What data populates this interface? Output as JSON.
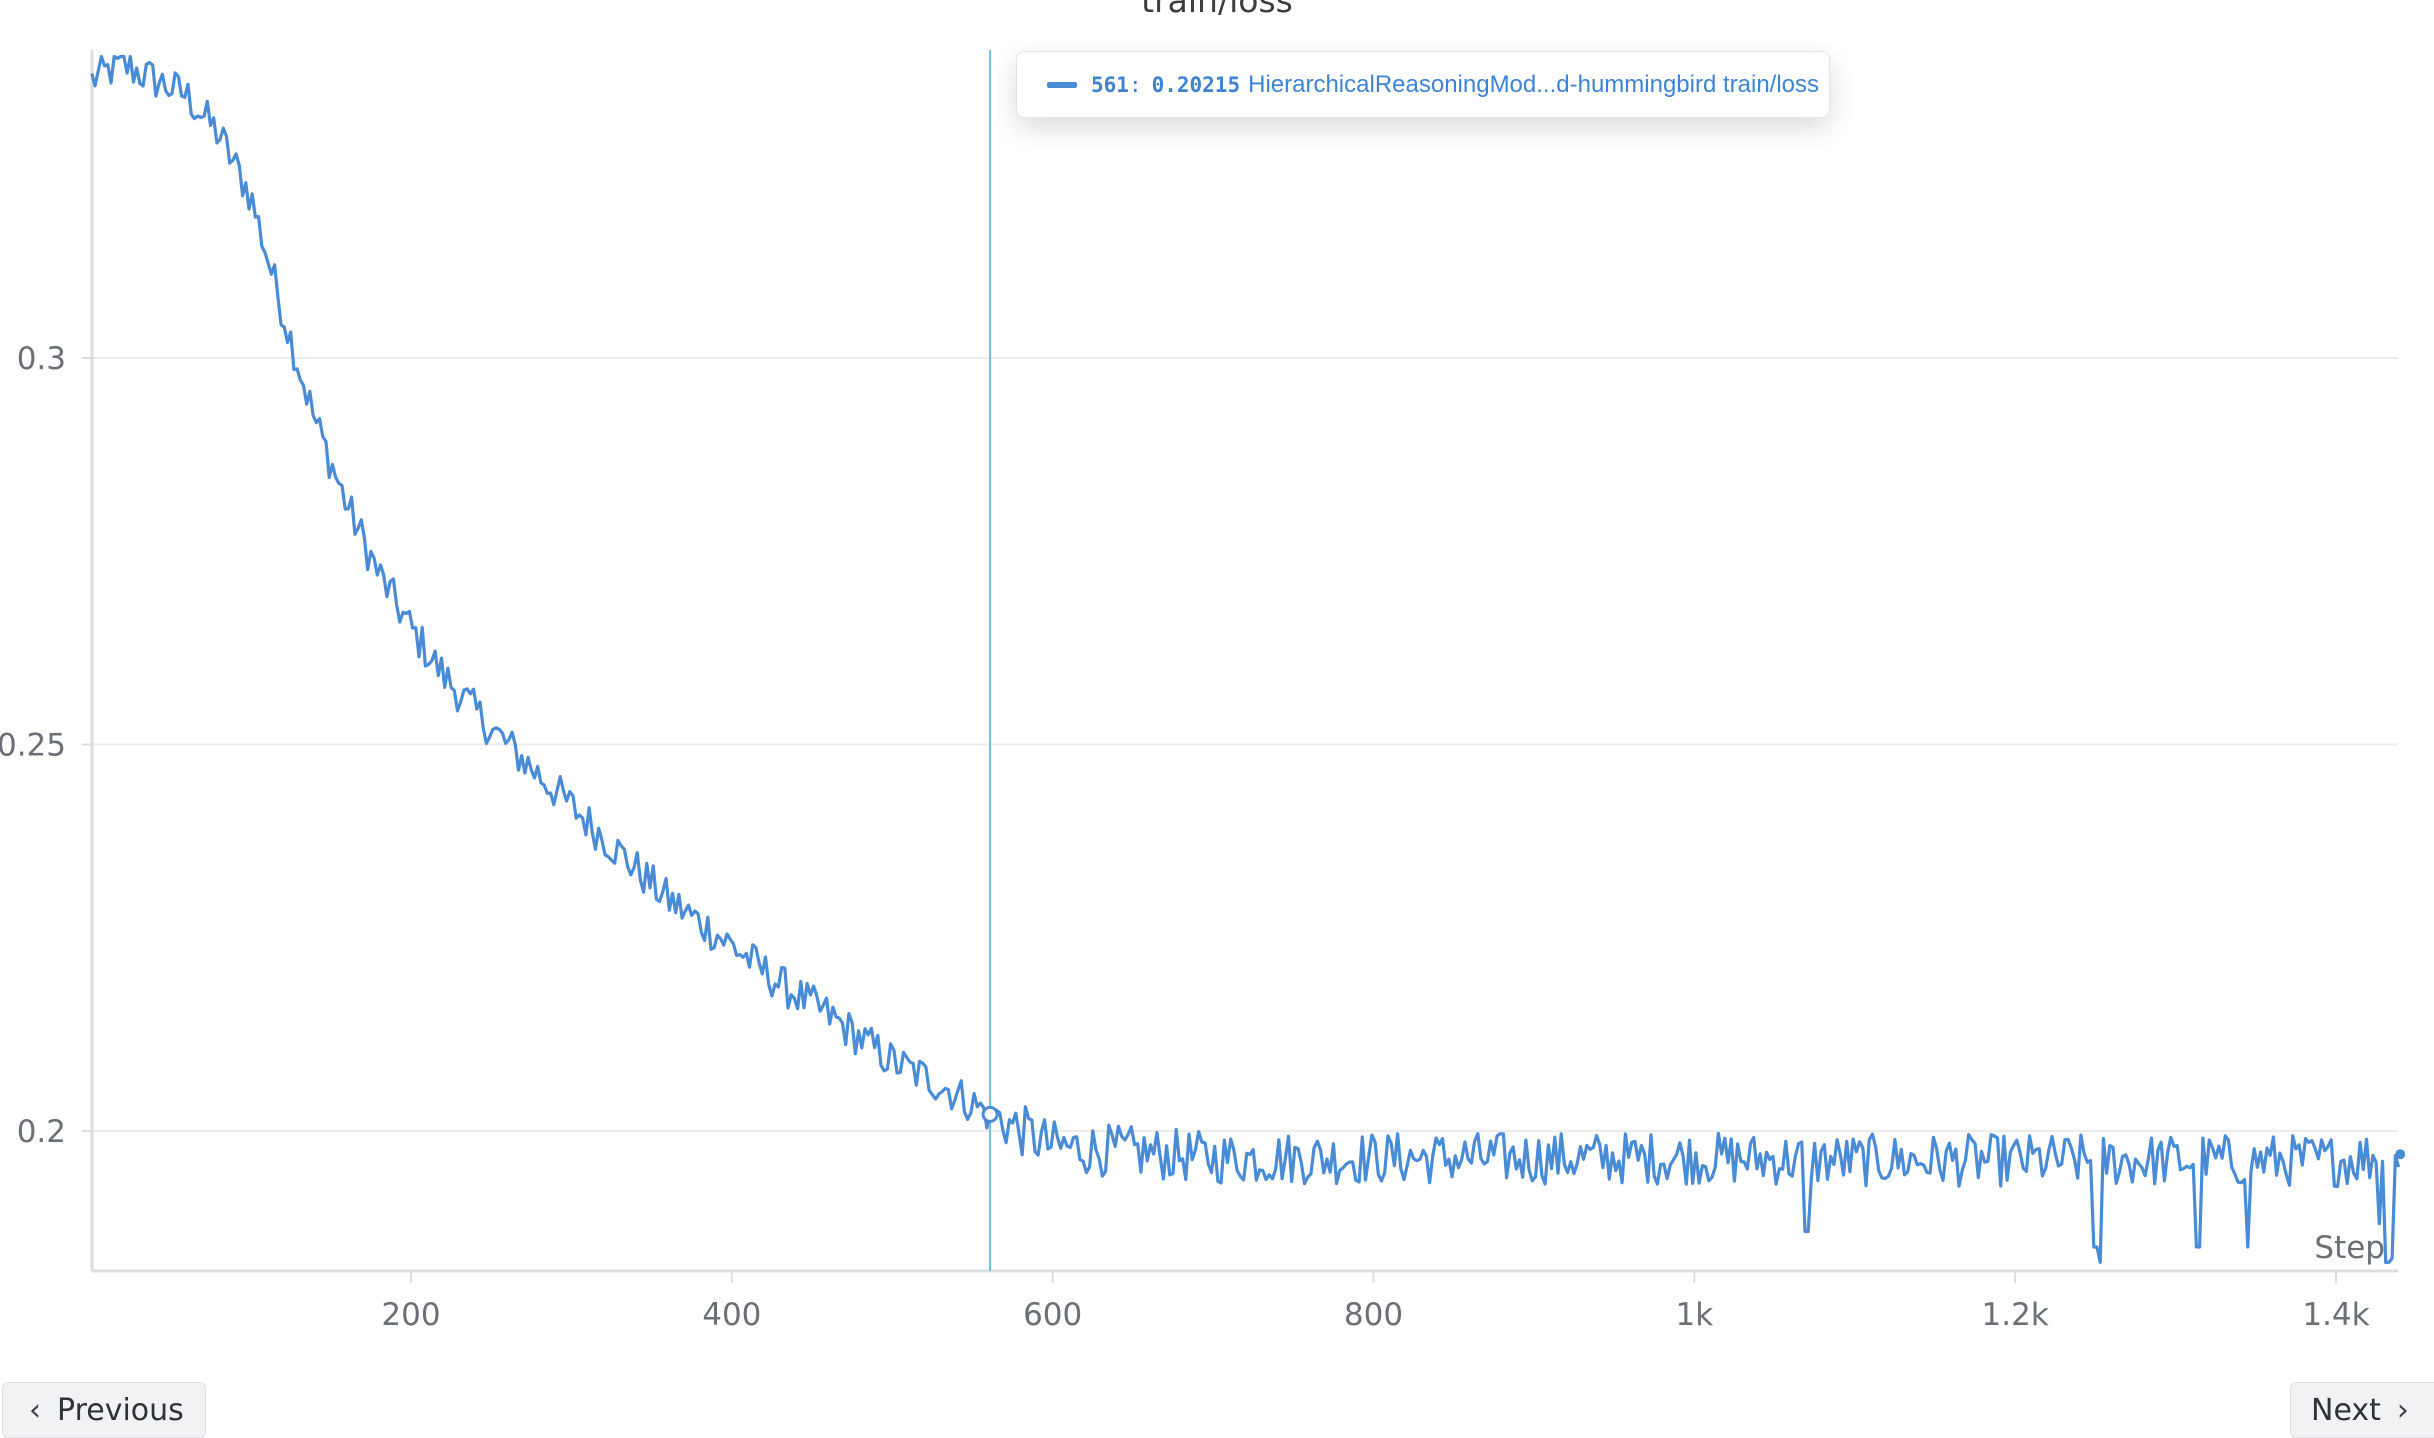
{
  "chart_data": {
    "type": "line",
    "title": "train/loss",
    "xlabel": "Step",
    "ylabel": "",
    "xlim": [
      1,
      1440
    ],
    "ylim": [
      0.182,
      0.339
    ],
    "x_ticks": [
      {
        "value": 200,
        "label": "200"
      },
      {
        "value": 400,
        "label": "400"
      },
      {
        "value": 600,
        "label": "600"
      },
      {
        "value": 800,
        "label": "800"
      },
      {
        "value": 1000,
        "label": "1k"
      },
      {
        "value": 1200,
        "label": "1.2k"
      },
      {
        "value": 1400,
        "label": "1.4k"
      }
    ],
    "y_ticks": [
      {
        "value": 0.2,
        "label": "0.2"
      },
      {
        "value": 0.25,
        "label": "0.25"
      },
      {
        "value": 0.3,
        "label": "0.3"
      }
    ],
    "grid": true,
    "series": [
      {
        "name": "HierarchicalReasoningMod...d-hummingbird train/loss",
        "color": "#4a8bd6",
        "x": [
          1,
          20,
          40,
          60,
          80,
          100,
          120,
          140,
          160,
          180,
          200,
          220,
          250,
          280,
          300,
          330,
          360,
          400,
          430,
          460,
          500,
          530,
          561,
          600,
          700,
          800,
          900,
          1000,
          1100,
          1200,
          1300,
          1400,
          1440
        ],
        "y": [
          0.336,
          0.338,
          0.336,
          0.334,
          0.329,
          0.321,
          0.306,
          0.292,
          0.281,
          0.272,
          0.265,
          0.259,
          0.252,
          0.246,
          0.242,
          0.236,
          0.23,
          0.224,
          0.219,
          0.215,
          0.209,
          0.206,
          0.20215,
          0.198,
          0.1965,
          0.1965,
          0.1965,
          0.1965,
          0.1962,
          0.1962,
          0.1962,
          0.1962,
          0.197
        ]
      }
    ]
  },
  "hover": {
    "step": 561,
    "value": 0.20215,
    "step_text": "561",
    "separator": ":",
    "value_text": "0.20215",
    "run_text": "HierarchicalReasoningMod...d-hummingbird train/loss"
  },
  "nav": {
    "previous_label": "Previous",
    "next_label": "Next",
    "previous_icon": "chevron-left-icon",
    "next_icon": "chevron-right-icon"
  },
  "colors": {
    "line": "#4a8bd6",
    "hover_line": "#6fbfd0",
    "grid": "#ececec",
    "axis": "#dadde2"
  }
}
